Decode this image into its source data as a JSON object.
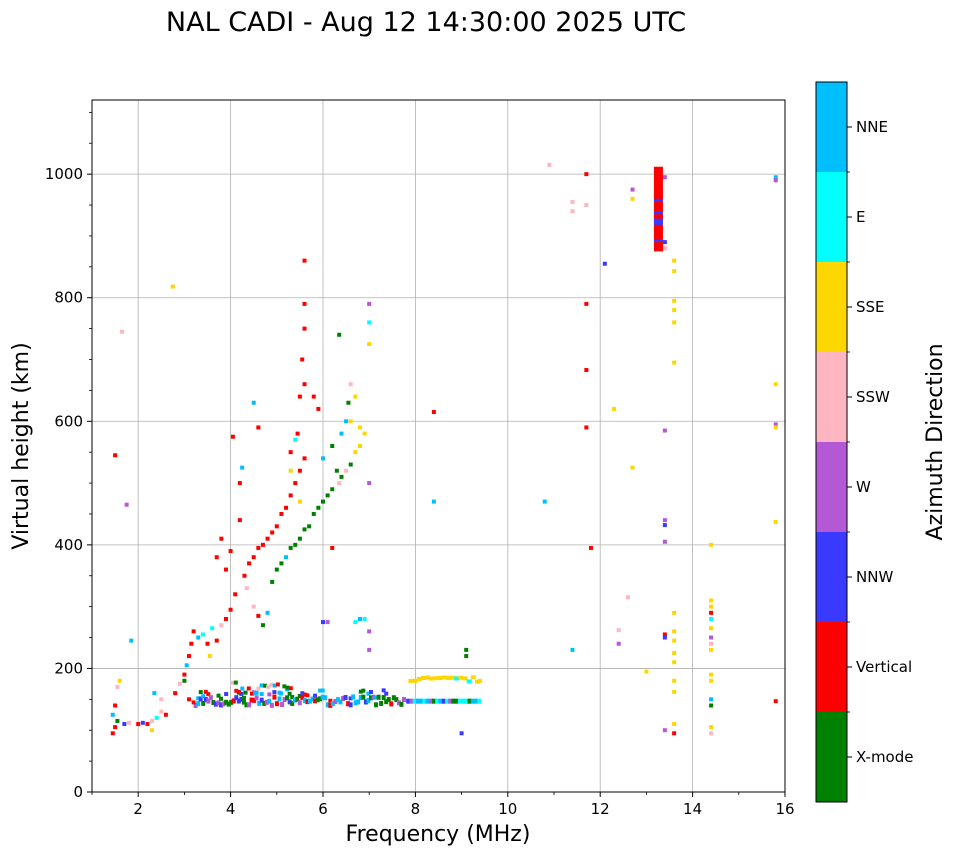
{
  "chart_data": {
    "type": "scatter",
    "title": "NAL CADI - Aug 12 14:30:00 2025 UTC",
    "xlabel": "Frequency (MHz)",
    "ylabel": "Virtual height (km)",
    "xlim": [
      1,
      16
    ],
    "ylim": [
      0,
      1120
    ],
    "xticks": [
      "2",
      "4",
      "6",
      "8",
      "10",
      "12",
      "14",
      "16"
    ],
    "yticks": [
      "0",
      "200",
      "400",
      "600",
      "800",
      "1000"
    ],
    "grid": true,
    "colorbar": {
      "label": "Azimuth Direction",
      "position": "right",
      "categories": [
        {
          "name": "X-mode",
          "color": "#008000"
        },
        {
          "name": "Vertical",
          "color": "#ff0000"
        },
        {
          "name": "NNW",
          "color": "#3a3aff"
        },
        {
          "name": "W",
          "color": "#b558d6"
        },
        {
          "name": "SSW",
          "color": "#ffb6c1"
        },
        {
          "name": "SSE",
          "color": "#ffd700"
        },
        {
          "name": "E",
          "color": "#00ffff"
        },
        {
          "name": "NNE",
          "color": "#00bfff"
        }
      ]
    },
    "points": [
      {
        "f": 1.45,
        "h": 95,
        "d": "Vertical"
      },
      {
        "f": 1.5,
        "h": 105,
        "d": "Vertical"
      },
      {
        "f": 1.55,
        "h": 115,
        "d": "X-mode"
      },
      {
        "f": 1.45,
        "h": 125,
        "d": "NNE"
      },
      {
        "f": 1.5,
        "h": 140,
        "d": "Vertical"
      },
      {
        "f": 1.55,
        "h": 170,
        "d": "SSW"
      },
      {
        "f": 1.6,
        "h": 180,
        "d": "SSE"
      },
      {
        "f": 1.7,
        "h": 110,
        "d": "NNW"
      },
      {
        "f": 1.8,
        "h": 112,
        "d": "SSW"
      },
      {
        "f": 1.5,
        "h": 545,
        "d": "Vertical"
      },
      {
        "f": 1.65,
        "h": 745,
        "d": "SSW"
      },
      {
        "f": 1.75,
        "h": 465,
        "d": "W"
      },
      {
        "f": 1.85,
        "h": 245,
        "d": "NNE"
      },
      {
        "f": 2.0,
        "h": 110,
        "d": "Vertical"
      },
      {
        "f": 2.1,
        "h": 112,
        "d": "NNW"
      },
      {
        "f": 2.2,
        "h": 110,
        "d": "Vertical"
      },
      {
        "f": 2.3,
        "h": 115,
        "d": "SSW"
      },
      {
        "f": 2.4,
        "h": 120,
        "d": "E"
      },
      {
        "f": 2.5,
        "h": 130,
        "d": "SSW"
      },
      {
        "f": 2.6,
        "h": 125,
        "d": "Vertical"
      },
      {
        "f": 2.35,
        "h": 160,
        "d": "NNE"
      },
      {
        "f": 2.5,
        "h": 150,
        "d": "SSW"
      },
      {
        "f": 2.3,
        "h": 100,
        "d": "SSE"
      },
      {
        "f": 2.75,
        "h": 818,
        "d": "SSE"
      },
      {
        "f": 2.8,
        "h": 160,
        "d": "Vertical"
      },
      {
        "f": 2.9,
        "h": 175,
        "d": "SSW"
      },
      {
        "f": 3.0,
        "h": 190,
        "d": "Vertical"
      },
      {
        "f": 3.05,
        "h": 205,
        "d": "NNE"
      },
      {
        "f": 3.1,
        "h": 220,
        "d": "Vertical"
      },
      {
        "f": 3.0,
        "h": 180,
        "d": "X-mode"
      },
      {
        "f": 3.1,
        "h": 150,
        "d": "Vertical"
      },
      {
        "f": 3.2,
        "h": 145,
        "d": "Vertical"
      },
      {
        "f": 3.15,
        "h": 240,
        "d": "Vertical"
      },
      {
        "f": 3.2,
        "h": 260,
        "d": "Vertical"
      },
      {
        "f": 3.3,
        "h": 250,
        "d": "NNE"
      },
      {
        "f": 3.4,
        "h": 255,
        "d": "E"
      },
      {
        "f": 3.5,
        "h": 240,
        "d": "Vertical"
      },
      {
        "f": 3.55,
        "h": 220,
        "d": "SSE"
      },
      {
        "f": 3.6,
        "h": 265,
        "d": "E"
      },
      {
        "f": 3.7,
        "h": 245,
        "d": "Vertical"
      },
      {
        "f": 3.8,
        "h": 270,
        "d": "SSW"
      },
      {
        "f": 3.9,
        "h": 280,
        "d": "Vertical"
      },
      {
        "f": 4.0,
        "h": 295,
        "d": "Vertical"
      },
      {
        "f": 4.1,
        "h": 320,
        "d": "Vertical"
      },
      {
        "f": 3.7,
        "h": 380,
        "d": "Vertical"
      },
      {
        "f": 3.8,
        "h": 410,
        "d": "Vertical"
      },
      {
        "f": 3.9,
        "h": 360,
        "d": "Vertical"
      },
      {
        "f": 4.0,
        "h": 390,
        "d": "Vertical"
      },
      {
        "f": 4.05,
        "h": 575,
        "d": "Vertical"
      },
      {
        "f": 4.2,
        "h": 500,
        "d": "Vertical"
      },
      {
        "f": 4.25,
        "h": 525,
        "d": "NNE"
      },
      {
        "f": 4.2,
        "h": 440,
        "d": "Vertical"
      },
      {
        "f": 4.3,
        "h": 350,
        "d": "Vertical"
      },
      {
        "f": 4.35,
        "h": 330,
        "d": "SSW"
      },
      {
        "f": 4.4,
        "h": 370,
        "d": "Vertical"
      },
      {
        "f": 4.5,
        "h": 380,
        "d": "Vertical"
      },
      {
        "f": 4.6,
        "h": 395,
        "d": "Vertical"
      },
      {
        "f": 4.7,
        "h": 400,
        "d": "Vertical"
      },
      {
        "f": 4.5,
        "h": 300,
        "d": "SSW"
      },
      {
        "f": 4.6,
        "h": 285,
        "d": "Vertical"
      },
      {
        "f": 4.7,
        "h": 270,
        "d": "X-mode"
      },
      {
        "f": 4.8,
        "h": 290,
        "d": "NNE"
      },
      {
        "f": 4.9,
        "h": 340,
        "d": "X-mode"
      },
      {
        "f": 5.0,
        "h": 360,
        "d": "X-mode"
      },
      {
        "f": 5.1,
        "h": 370,
        "d": "X-mode"
      },
      {
        "f": 5.2,
        "h": 380,
        "d": "NNE"
      },
      {
        "f": 5.3,
        "h": 395,
        "d": "X-mode"
      },
      {
        "f": 5.4,
        "h": 400,
        "d": "X-mode"
      },
      {
        "f": 5.5,
        "h": 410,
        "d": "X-mode"
      },
      {
        "f": 5.6,
        "h": 425,
        "d": "X-mode"
      },
      {
        "f": 5.7,
        "h": 430,
        "d": "X-mode"
      },
      {
        "f": 5.8,
        "h": 450,
        "d": "X-mode"
      },
      {
        "f": 5.9,
        "h": 460,
        "d": "X-mode"
      },
      {
        "f": 6.0,
        "h": 470,
        "d": "X-mode"
      },
      {
        "f": 6.1,
        "h": 480,
        "d": "X-mode"
      },
      {
        "f": 6.2,
        "h": 490,
        "d": "X-mode"
      },
      {
        "f": 4.8,
        "h": 410,
        "d": "Vertical"
      },
      {
        "f": 4.9,
        "h": 420,
        "d": "Vertical"
      },
      {
        "f": 5.0,
        "h": 430,
        "d": "Vertical"
      },
      {
        "f": 5.1,
        "h": 450,
        "d": "Vertical"
      },
      {
        "f": 5.2,
        "h": 460,
        "d": "Vertical"
      },
      {
        "f": 5.3,
        "h": 480,
        "d": "Vertical"
      },
      {
        "f": 5.4,
        "h": 500,
        "d": "Vertical"
      },
      {
        "f": 5.5,
        "h": 520,
        "d": "Vertical"
      },
      {
        "f": 5.6,
        "h": 540,
        "d": "Vertical"
      },
      {
        "f": 5.3,
        "h": 550,
        "d": "Vertical"
      },
      {
        "f": 5.45,
        "h": 580,
        "d": "Vertical"
      },
      {
        "f": 5.5,
        "h": 640,
        "d": "Vertical"
      },
      {
        "f": 5.6,
        "h": 660,
        "d": "Vertical"
      },
      {
        "f": 5.55,
        "h": 700,
        "d": "Vertical"
      },
      {
        "f": 5.6,
        "h": 750,
        "d": "Vertical"
      },
      {
        "f": 5.6,
        "h": 790,
        "d": "Vertical"
      },
      {
        "f": 5.6,
        "h": 860,
        "d": "Vertical"
      },
      {
        "f": 5.8,
        "h": 640,
        "d": "Vertical"
      },
      {
        "f": 5.9,
        "h": 620,
        "d": "Vertical"
      },
      {
        "f": 6.0,
        "h": 540,
        "d": "NNE"
      },
      {
        "f": 6.2,
        "h": 560,
        "d": "X-mode"
      },
      {
        "f": 6.3,
        "h": 520,
        "d": "X-mode"
      },
      {
        "f": 6.35,
        "h": 500,
        "d": "SSW"
      },
      {
        "f": 6.4,
        "h": 510,
        "d": "X-mode"
      },
      {
        "f": 6.5,
        "h": 520,
        "d": "SSW"
      },
      {
        "f": 6.6,
        "h": 530,
        "d": "X-mode"
      },
      {
        "f": 6.7,
        "h": 550,
        "d": "SSE"
      },
      {
        "f": 6.8,
        "h": 560,
        "d": "SSE"
      },
      {
        "f": 6.9,
        "h": 580,
        "d": "SSE"
      },
      {
        "f": 6.6,
        "h": 600,
        "d": "SSE"
      },
      {
        "f": 6.8,
        "h": 590,
        "d": "SSE"
      },
      {
        "f": 6.4,
        "h": 580,
        "d": "NNE"
      },
      {
        "f": 6.5,
        "h": 600,
        "d": "NNE"
      },
      {
        "f": 6.55,
        "h": 630,
        "d": "X-mode"
      },
      {
        "f": 6.6,
        "h": 660,
        "d": "SSW"
      },
      {
        "f": 6.7,
        "h": 640,
        "d": "SSE"
      },
      {
        "f": 6.35,
        "h": 740,
        "d": "X-mode"
      },
      {
        "f": 5.4,
        "h": 570,
        "d": "E"
      },
      {
        "f": 5.3,
        "h": 520,
        "d": "SSE"
      },
      {
        "f": 5.5,
        "h": 470,
        "d": "SSE"
      },
      {
        "f": 4.5,
        "h": 630,
        "d": "NNE"
      },
      {
        "f": 4.6,
        "h": 590,
        "d": "Vertical"
      },
      {
        "f": 6.2,
        "h": 395,
        "d": "Vertical"
      },
      {
        "f": 7.0,
        "h": 725,
        "d": "SSE"
      },
      {
        "f": 7.0,
        "h": 760,
        "d": "E"
      },
      {
        "f": 7.0,
        "h": 790,
        "d": "W"
      },
      {
        "f": 7.0,
        "h": 500,
        "d": "W"
      },
      {
        "f": 6.9,
        "h": 280,
        "d": "E"
      },
      {
        "f": 6.8,
        "h": 280,
        "d": "NNE"
      },
      {
        "f": 6.7,
        "h": 275,
        "d": "E"
      },
      {
        "f": 7.0,
        "h": 260,
        "d": "W"
      },
      {
        "f": 7.0,
        "h": 230,
        "d": "W"
      },
      {
        "f": 6.0,
        "h": 275,
        "d": "NNW"
      },
      {
        "f": 6.1,
        "h": 275,
        "d": "W"
      },
      {
        "f": 8.4,
        "h": 615,
        "d": "Vertical"
      },
      {
        "f": 8.4,
        "h": 470,
        "d": "NNE"
      },
      {
        "f": 9.1,
        "h": 230,
        "d": "X-mode"
      },
      {
        "f": 9.1,
        "h": 220,
        "d": "X-mode"
      },
      {
        "f": 9.4,
        "h": 180,
        "d": "SSE"
      },
      {
        "f": 9.0,
        "h": 95,
        "d": "NNW"
      },
      {
        "f": 10.8,
        "h": 470,
        "d": "NNE"
      },
      {
        "f": 10.9,
        "h": 1015,
        "d": "SSW"
      },
      {
        "f": 11.4,
        "h": 955,
        "d": "SSW"
      },
      {
        "f": 11.4,
        "h": 940,
        "d": "SSW"
      },
      {
        "f": 11.7,
        "h": 1000,
        "d": "Vertical"
      },
      {
        "f": 11.7,
        "h": 950,
        "d": "SSW"
      },
      {
        "f": 11.7,
        "h": 790,
        "d": "Vertical"
      },
      {
        "f": 11.7,
        "h": 683,
        "d": "Vertical"
      },
      {
        "f": 11.7,
        "h": 590,
        "d": "Vertical"
      },
      {
        "f": 11.8,
        "h": 395,
        "d": "Vertical"
      },
      {
        "f": 11.4,
        "h": 230,
        "d": "NNE"
      },
      {
        "f": 12.1,
        "h": 855,
        "d": "NNW"
      },
      {
        "f": 12.3,
        "h": 620,
        "d": "SSE"
      },
      {
        "f": 12.4,
        "h": 262,
        "d": "SSW"
      },
      {
        "f": 12.4,
        "h": 240,
        "d": "W"
      },
      {
        "f": 12.6,
        "h": 315,
        "d": "SSW"
      },
      {
        "f": 12.7,
        "h": 525,
        "d": "SSE"
      },
      {
        "f": 12.7,
        "h": 960,
        "d": "SSE"
      },
      {
        "f": 12.7,
        "h": 975,
        "d": "W"
      },
      {
        "f": 13.0,
        "h": 195,
        "d": "SSE"
      },
      {
        "f": 13.4,
        "h": 995,
        "d": "W"
      },
      {
        "f": 13.4,
        "h": 890,
        "d": "NNW"
      },
      {
        "f": 13.4,
        "h": 880,
        "d": "SSW"
      },
      {
        "f": 13.4,
        "h": 585,
        "d": "W"
      },
      {
        "f": 13.4,
        "h": 440,
        "d": "W"
      },
      {
        "f": 13.4,
        "h": 432,
        "d": "NNW"
      },
      {
        "f": 13.4,
        "h": 405,
        "d": "W"
      },
      {
        "f": 13.4,
        "h": 255,
        "d": "Vertical"
      },
      {
        "f": 13.4,
        "h": 250,
        "d": "NNW"
      },
      {
        "f": 13.4,
        "h": 100,
        "d": "W"
      },
      {
        "f": 13.6,
        "h": 860,
        "d": "SSE"
      },
      {
        "f": 13.6,
        "h": 843,
        "d": "SSE"
      },
      {
        "f": 13.6,
        "h": 795,
        "d": "SSE"
      },
      {
        "f": 13.6,
        "h": 780,
        "d": "SSE"
      },
      {
        "f": 13.6,
        "h": 760,
        "d": "SSE"
      },
      {
        "f": 13.6,
        "h": 695,
        "d": "SSE"
      },
      {
        "f": 13.6,
        "h": 290,
        "d": "SSE"
      },
      {
        "f": 13.6,
        "h": 260,
        "d": "SSE"
      },
      {
        "f": 13.6,
        "h": 245,
        "d": "SSE"
      },
      {
        "f": 13.6,
        "h": 225,
        "d": "SSE"
      },
      {
        "f": 13.6,
        "h": 210,
        "d": "SSE"
      },
      {
        "f": 13.6,
        "h": 180,
        "d": "SSE"
      },
      {
        "f": 13.6,
        "h": 162,
        "d": "SSE"
      },
      {
        "f": 13.6,
        "h": 110,
        "d": "SSE"
      },
      {
        "f": 13.6,
        "h": 95,
        "d": "Vertical"
      },
      {
        "f": 14.4,
        "h": 400,
        "d": "SSE"
      },
      {
        "f": 14.4,
        "h": 310,
        "d": "SSE"
      },
      {
        "f": 14.4,
        "h": 300,
        "d": "SSE"
      },
      {
        "f": 14.4,
        "h": 290,
        "d": "Vertical"
      },
      {
        "f": 14.4,
        "h": 280,
        "d": "E"
      },
      {
        "f": 14.4,
        "h": 265,
        "d": "SSE"
      },
      {
        "f": 14.4,
        "h": 250,
        "d": "W"
      },
      {
        "f": 14.4,
        "h": 240,
        "d": "SSW"
      },
      {
        "f": 14.4,
        "h": 230,
        "d": "SSE"
      },
      {
        "f": 14.4,
        "h": 190,
        "d": "SSE"
      },
      {
        "f": 14.4,
        "h": 180,
        "d": "SSE"
      },
      {
        "f": 14.4,
        "h": 150,
        "d": "NNE"
      },
      {
        "f": 14.4,
        "h": 140,
        "d": "X-mode"
      },
      {
        "f": 14.4,
        "h": 105,
        "d": "SSE"
      },
      {
        "f": 14.4,
        "h": 95,
        "d": "SSW"
      },
      {
        "f": 15.8,
        "h": 995,
        "d": "NNE"
      },
      {
        "f": 15.8,
        "h": 990,
        "d": "W"
      },
      {
        "f": 15.8,
        "h": 660,
        "d": "SSE"
      },
      {
        "f": 15.8,
        "h": 595,
        "d": "W"
      },
      {
        "f": 15.8,
        "h": 590,
        "d": "SSE"
      },
      {
        "f": 15.8,
        "h": 437,
        "d": "SSE"
      },
      {
        "f": 15.8,
        "h": 147,
        "d": "Vertical"
      }
    ],
    "columns": [
      {
        "f": 13.25,
        "h0": 875,
        "h1": 1012,
        "d": "Vertical"
      }
    ]
  }
}
